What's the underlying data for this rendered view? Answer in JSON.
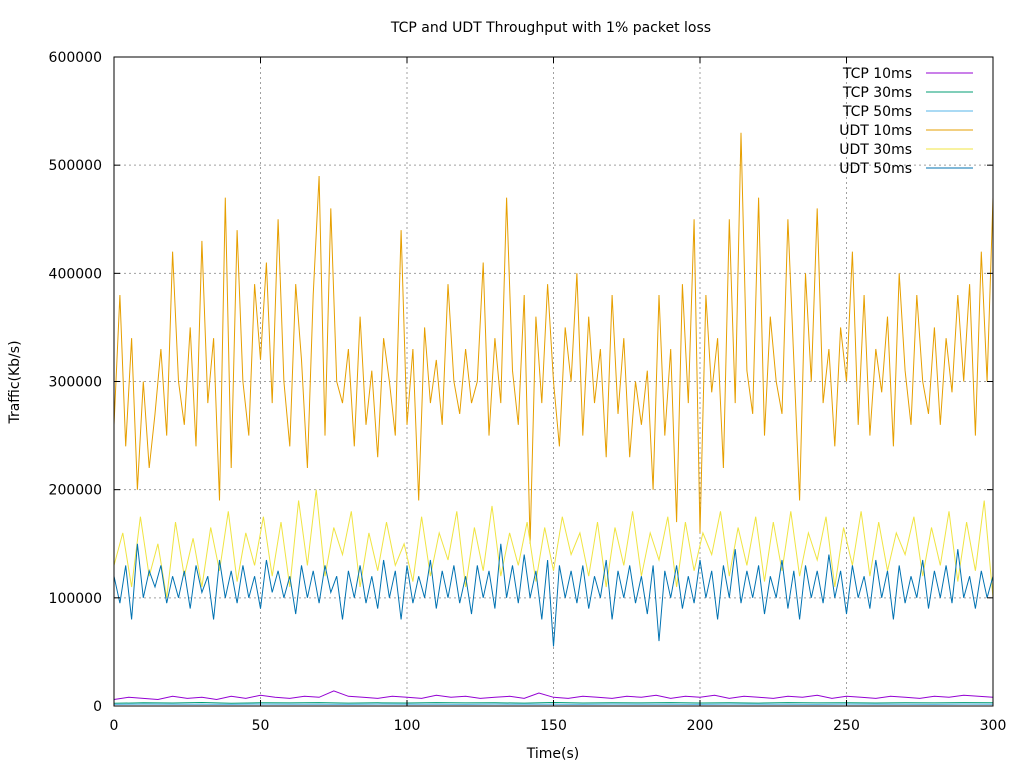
{
  "chart_data": {
    "type": "line",
    "title": "TCP and UDT Throughput with 1% packet loss",
    "xlabel": "Time(s)",
    "ylabel": "Traffic(Kb/s)",
    "xlim": [
      0,
      300
    ],
    "ylim": [
      0,
      600000
    ],
    "x_ticks": [
      0,
      50,
      100,
      150,
      200,
      250,
      300
    ],
    "y_ticks": [
      0,
      100000,
      200000,
      300000,
      400000,
      500000,
      600000
    ],
    "grid": true,
    "legend_position": "top-right",
    "series": [
      {
        "name": "TCP 10ms",
        "color": "#9400d3",
        "x": [
          0,
          5,
          10,
          15,
          20,
          25,
          30,
          35,
          40,
          45,
          50,
          55,
          60,
          65,
          70,
          75,
          80,
          85,
          90,
          95,
          100,
          105,
          110,
          115,
          120,
          125,
          130,
          135,
          140,
          145,
          150,
          155,
          160,
          165,
          170,
          175,
          180,
          185,
          190,
          195,
          200,
          205,
          210,
          215,
          220,
          225,
          230,
          235,
          240,
          245,
          250,
          255,
          260,
          265,
          270,
          275,
          280,
          285,
          290,
          295,
          300
        ],
        "y": [
          6000,
          8000,
          7000,
          6000,
          9000,
          7000,
          8000,
          6000,
          9000,
          7000,
          10000,
          8000,
          7000,
          9000,
          8000,
          14000,
          9000,
          8000,
          7000,
          9000,
          8000,
          7000,
          10000,
          8000,
          9000,
          7000,
          8000,
          9000,
          7000,
          12000,
          8000,
          7000,
          9000,
          8000,
          7000,
          9000,
          8000,
          10000,
          7000,
          9000,
          8000,
          10000,
          7000,
          9000,
          8000,
          7000,
          9000,
          8000,
          10000,
          7000,
          9000,
          8000,
          7000,
          9000,
          8000,
          7000,
          9000,
          8000,
          10000,
          9000,
          8000
        ]
      },
      {
        "name": "TCP 30ms",
        "color": "#009e73",
        "x": [
          0,
          10,
          20,
          30,
          40,
          50,
          60,
          70,
          80,
          90,
          100,
          110,
          120,
          130,
          140,
          150,
          160,
          170,
          180,
          190,
          200,
          210,
          220,
          230,
          240,
          250,
          260,
          270,
          280,
          290,
          300
        ],
        "y": [
          2500,
          3000,
          2800,
          3200,
          2600,
          3000,
          2900,
          3100,
          2700,
          3000,
          2800,
          3100,
          2900,
          3000,
          2700,
          3200,
          2800,
          3000,
          2900,
          3100,
          2800,
          3000,
          2700,
          3100,
          2900,
          3000,
          2800,
          3000,
          2900,
          3100,
          3000
        ]
      },
      {
        "name": "TCP 50ms",
        "color": "#56b4e9",
        "x": [
          0,
          10,
          20,
          30,
          40,
          50,
          60,
          70,
          80,
          90,
          100,
          110,
          120,
          130,
          140,
          150,
          160,
          170,
          180,
          190,
          200,
          210,
          220,
          230,
          240,
          250,
          260,
          270,
          280,
          290,
          300
        ],
        "y": [
          1500,
          1800,
          1600,
          1700,
          1500,
          1800,
          1600,
          1700,
          1500,
          1800,
          1600,
          1700,
          1500,
          1800,
          1600,
          1700,
          1500,
          1800,
          1600,
          1700,
          1500,
          1800,
          1600,
          1700,
          1500,
          1800,
          1600,
          1700,
          1500,
          1800,
          1600
        ]
      },
      {
        "name": "UDT 10ms",
        "color": "#e69f00",
        "x": [
          0,
          2,
          4,
          6,
          8,
          10,
          12,
          14,
          16,
          18,
          20,
          22,
          24,
          26,
          28,
          30,
          32,
          34,
          36,
          38,
          40,
          42,
          44,
          46,
          48,
          50,
          52,
          54,
          56,
          58,
          60,
          62,
          64,
          66,
          68,
          70,
          72,
          74,
          76,
          78,
          80,
          82,
          84,
          86,
          88,
          90,
          92,
          94,
          96,
          98,
          100,
          102,
          104,
          106,
          108,
          110,
          112,
          114,
          116,
          118,
          120,
          122,
          124,
          126,
          128,
          130,
          132,
          134,
          136,
          138,
          140,
          142,
          144,
          146,
          148,
          150,
          152,
          154,
          156,
          158,
          160,
          162,
          164,
          166,
          168,
          170,
          172,
          174,
          176,
          178,
          180,
          182,
          184,
          186,
          188,
          190,
          192,
          194,
          196,
          198,
          200,
          202,
          204,
          206,
          208,
          210,
          212,
          214,
          216,
          218,
          220,
          222,
          224,
          226,
          228,
          230,
          232,
          234,
          236,
          238,
          240,
          242,
          244,
          246,
          248,
          250,
          252,
          254,
          256,
          258,
          260,
          262,
          264,
          266,
          268,
          270,
          272,
          274,
          276,
          278,
          280,
          282,
          284,
          286,
          288,
          290,
          292,
          294,
          296,
          298,
          300
        ],
        "y": [
          260000,
          380000,
          240000,
          340000,
          200000,
          300000,
          220000,
          270000,
          330000,
          250000,
          420000,
          300000,
          260000,
          350000,
          240000,
          430000,
          280000,
          340000,
          190000,
          470000,
          220000,
          440000,
          300000,
          250000,
          390000,
          320000,
          410000,
          280000,
          450000,
          300000,
          240000,
          390000,
          320000,
          220000,
          380000,
          490000,
          250000,
          460000,
          300000,
          280000,
          330000,
          240000,
          360000,
          260000,
          310000,
          230000,
          340000,
          300000,
          250000,
          440000,
          260000,
          330000,
          190000,
          350000,
          280000,
          320000,
          260000,
          390000,
          300000,
          270000,
          330000,
          280000,
          300000,
          410000,
          250000,
          340000,
          280000,
          470000,
          310000,
          260000,
          380000,
          150000,
          360000,
          280000,
          390000,
          300000,
          240000,
          350000,
          300000,
          400000,
          250000,
          360000,
          280000,
          330000,
          230000,
          380000,
          270000,
          340000,
          230000,
          300000,
          260000,
          310000,
          200000,
          380000,
          250000,
          330000,
          170000,
          390000,
          280000,
          450000,
          160000,
          380000,
          290000,
          340000,
          220000,
          450000,
          280000,
          530000,
          310000,
          270000,
          470000,
          250000,
          360000,
          300000,
          270000,
          450000,
          320000,
          190000,
          400000,
          300000,
          460000,
          280000,
          330000,
          240000,
          350000,
          300000,
          420000,
          260000,
          380000,
          250000,
          330000,
          290000,
          360000,
          240000,
          400000,
          310000,
          260000,
          380000,
          300000,
          270000,
          350000,
          260000,
          340000,
          290000,
          380000,
          300000,
          390000,
          250000,
          420000,
          300000,
          470000
        ]
      },
      {
        "name": "UDT 30ms",
        "color": "#f0e442",
        "x": [
          0,
          3,
          6,
          9,
          12,
          15,
          18,
          21,
          24,
          27,
          30,
          33,
          36,
          39,
          42,
          45,
          48,
          51,
          54,
          57,
          60,
          63,
          66,
          69,
          72,
          75,
          78,
          81,
          84,
          87,
          90,
          93,
          96,
          99,
          102,
          105,
          108,
          111,
          114,
          117,
          120,
          123,
          126,
          129,
          132,
          135,
          138,
          141,
          144,
          147,
          150,
          153,
          156,
          159,
          162,
          165,
          168,
          171,
          174,
          177,
          180,
          183,
          186,
          189,
          192,
          195,
          198,
          201,
          204,
          207,
          210,
          213,
          216,
          219,
          222,
          225,
          228,
          231,
          234,
          237,
          240,
          243,
          246,
          249,
          252,
          255,
          258,
          261,
          264,
          267,
          270,
          273,
          276,
          279,
          282,
          285,
          288,
          291,
          294,
          297,
          300
        ],
        "y": [
          130000,
          160000,
          110000,
          175000,
          120000,
          150000,
          100000,
          170000,
          120000,
          155000,
          110000,
          165000,
          125000,
          180000,
          115000,
          160000,
          130000,
          175000,
          120000,
          170000,
          110000,
          190000,
          130000,
          200000,
          120000,
          165000,
          140000,
          180000,
          110000,
          160000,
          125000,
          170000,
          130000,
          150000,
          115000,
          175000,
          120000,
          160000,
          135000,
          180000,
          110000,
          165000,
          125000,
          185000,
          120000,
          160000,
          130000,
          170000,
          115000,
          165000,
          125000,
          175000,
          140000,
          160000,
          120000,
          170000,
          110000,
          165000,
          130000,
          180000,
          120000,
          160000,
          135000,
          175000,
          110000,
          170000,
          125000,
          160000,
          140000,
          180000,
          120000,
          165000,
          130000,
          175000,
          115000,
          170000,
          125000,
          180000,
          120000,
          160000,
          135000,
          175000,
          110000,
          165000,
          130000,
          180000,
          120000,
          170000,
          125000,
          160000,
          140000,
          175000,
          120000,
          165000,
          130000,
          180000,
          115000,
          170000,
          125000,
          190000,
          100000
        ]
      },
      {
        "name": "UDT 50ms",
        "color": "#0072b2",
        "x": [
          0,
          2,
          4,
          6,
          8,
          10,
          12,
          14,
          16,
          18,
          20,
          22,
          24,
          26,
          28,
          30,
          32,
          34,
          36,
          38,
          40,
          42,
          44,
          46,
          48,
          50,
          52,
          54,
          56,
          58,
          60,
          62,
          64,
          66,
          68,
          70,
          72,
          74,
          76,
          78,
          80,
          82,
          84,
          86,
          88,
          90,
          92,
          94,
          96,
          98,
          100,
          102,
          104,
          106,
          108,
          110,
          112,
          114,
          116,
          118,
          120,
          122,
          124,
          126,
          128,
          130,
          132,
          134,
          136,
          138,
          140,
          142,
          144,
          146,
          148,
          150,
          152,
          154,
          156,
          158,
          160,
          162,
          164,
          166,
          168,
          170,
          172,
          174,
          176,
          178,
          180,
          182,
          184,
          186,
          188,
          190,
          192,
          194,
          196,
          198,
          200,
          202,
          204,
          206,
          208,
          210,
          212,
          214,
          216,
          218,
          220,
          222,
          224,
          226,
          228,
          230,
          232,
          234,
          236,
          238,
          240,
          242,
          244,
          246,
          248,
          250,
          252,
          254,
          256,
          258,
          260,
          262,
          264,
          266,
          268,
          270,
          272,
          274,
          276,
          278,
          280,
          282,
          284,
          286,
          288,
          290,
          292,
          294,
          296,
          298,
          300
        ],
        "y": [
          120000,
          95000,
          130000,
          80000,
          150000,
          100000,
          125000,
          110000,
          130000,
          95000,
          120000,
          100000,
          125000,
          90000,
          130000,
          105000,
          120000,
          80000,
          135000,
          100000,
          125000,
          95000,
          130000,
          100000,
          120000,
          90000,
          135000,
          105000,
          125000,
          100000,
          120000,
          85000,
          130000,
          100000,
          125000,
          95000,
          130000,
          105000,
          120000,
          80000,
          125000,
          100000,
          130000,
          95000,
          120000,
          90000,
          135000,
          100000,
          125000,
          80000,
          130000,
          95000,
          120000,
          100000,
          135000,
          90000,
          125000,
          100000,
          130000,
          95000,
          120000,
          85000,
          130000,
          100000,
          125000,
          90000,
          150000,
          100000,
          130000,
          95000,
          140000,
          100000,
          125000,
          80000,
          135000,
          55000,
          130000,
          100000,
          125000,
          95000,
          130000,
          90000,
          120000,
          100000,
          135000,
          80000,
          125000,
          100000,
          130000,
          95000,
          120000,
          85000,
          130000,
          60000,
          125000,
          100000,
          130000,
          90000,
          120000,
          95000,
          135000,
          100000,
          125000,
          80000,
          130000,
          100000,
          145000,
          95000,
          125000,
          100000,
          130000,
          85000,
          120000,
          100000,
          135000,
          90000,
          125000,
          80000,
          130000,
          100000,
          125000,
          95000,
          140000,
          100000,
          125000,
          85000,
          130000,
          100000,
          120000,
          90000,
          135000,
          100000,
          125000,
          80000,
          130000,
          95000,
          120000,
          100000,
          135000,
          90000,
          125000,
          100000,
          130000,
          95000,
          145000,
          100000,
          120000,
          90000,
          125000,
          100000,
          120000
        ]
      }
    ]
  }
}
